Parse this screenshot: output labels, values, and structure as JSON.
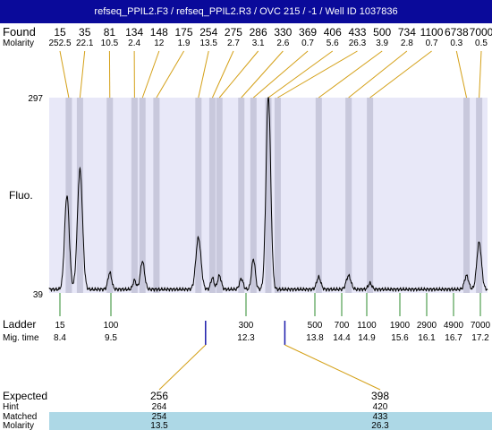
{
  "header": {
    "title": "refseq_PPIL2.F3 / refseq_PPIL2.R3 / OVC 215 / -1 / Well ID 1037836"
  },
  "labels": {
    "found": "Found",
    "molarity": "Molarity",
    "fluo": "Fluo.",
    "ladder": "Ladder",
    "mig_time": "Mig. time",
    "expected": "Expected",
    "hint": "Hint",
    "matched": "Matched",
    "molarity_row": "Molarity"
  },
  "colors": {
    "title_bg": "#0a0a9a",
    "plot_bg": "#e8e8f8",
    "band": "#c8c8dc",
    "found_line": "#d4a017",
    "ladder_line": "#2e8b2e",
    "expected_line": "#d4a017",
    "expected_marker": "#1a1aaa",
    "highlight_row": "#add8e6"
  },
  "chart_data": {
    "type": "line",
    "y_axis": {
      "top_label": "297",
      "bottom_label": "39",
      "ymin": 39,
      "ymax": 297
    },
    "time_range": [
      8.0,
      17.4
    ],
    "found_peaks": [
      {
        "size": "15",
        "molarity": "252.5",
        "time": 8.42
      },
      {
        "size": "35",
        "molarity": "22.1",
        "time": 8.66
      },
      {
        "size": "81",
        "molarity": "10.5",
        "time": 9.3
      },
      {
        "size": "134",
        "molarity": "2.4",
        "time": 9.83
      },
      {
        "size": "148",
        "molarity": "12",
        "time": 10.0
      },
      {
        "size": "175",
        "molarity": "1.9",
        "time": 10.3
      },
      {
        "size": "254",
        "molarity": "13.5",
        "time": 11.2
      },
      {
        "size": "275",
        "molarity": "2.7",
        "time": 11.5
      },
      {
        "size": "286",
        "molarity": "3.1",
        "time": 11.65
      },
      {
        "size": "330",
        "molarity": "2.6",
        "time": 12.12
      },
      {
        "size": "369",
        "molarity": "0.7",
        "time": 12.38
      },
      {
        "size": "406",
        "molarity": "5.6",
        "time": 12.7
      },
      {
        "size": "433",
        "molarity": "26.3",
        "time": 12.9
      },
      {
        "size": "500",
        "molarity": "3.9",
        "time": 13.78
      },
      {
        "size": "734",
        "molarity": "2.8",
        "time": 14.42
      },
      {
        "size": "1100",
        "molarity": "0.7",
        "time": 14.88
      },
      {
        "size": "6738",
        "molarity": "0.3",
        "time": 16.95
      },
      {
        "size": "7000",
        "molarity": "0.5",
        "time": 17.22
      }
    ],
    "ladder": [
      {
        "size": "15",
        "time": "8.4",
        "t": 8.4
      },
      {
        "size": "100",
        "time": "9.5",
        "t": 9.5
      },
      {
        "size": "300",
        "time": "12.3",
        "t": 12.3
      },
      {
        "size": "500",
        "time": "13.8",
        "t": 13.8
      },
      {
        "size": "700",
        "time": "14.4",
        "t": 14.4
      },
      {
        "size": "1100",
        "time": "14.9",
        "t": 14.9
      },
      {
        "size": "1900",
        "time": "15.6",
        "t": 15.6
      },
      {
        "size": "2900",
        "time": "16.1",
        "t": 16.1
      },
      {
        "size": "4900",
        "time": "16.7",
        "t": 16.7
      },
      {
        "size": "7000",
        "time": "17.2",
        "t": 17.2
      }
    ],
    "expected": [
      {
        "expected": "256",
        "hint": "264",
        "matched": "254",
        "molarity": "13.5",
        "t": 11.2
      },
      {
        "expected": "398",
        "hint": "420",
        "matched": "433",
        "molarity": "26.3",
        "t": 12.9
      }
    ],
    "trace_peaks": [
      {
        "t": 8.38,
        "h": 124,
        "w": 0.05
      },
      {
        "t": 8.66,
        "h": 158,
        "w": 0.055
      },
      {
        "t": 9.3,
        "h": 22,
        "w": 0.04
      },
      {
        "t": 9.83,
        "h": 12,
        "w": 0.035
      },
      {
        "t": 10.0,
        "h": 37,
        "w": 0.045
      },
      {
        "t": 11.2,
        "h": 68,
        "w": 0.055
      },
      {
        "t": 11.5,
        "h": 15,
        "w": 0.035
      },
      {
        "t": 11.65,
        "h": 18,
        "w": 0.04
      },
      {
        "t": 12.12,
        "h": 14,
        "w": 0.04
      },
      {
        "t": 12.38,
        "h": 40,
        "w": 0.04
      },
      {
        "t": 12.7,
        "h": 255,
        "w": 0.05
      },
      {
        "t": 13.78,
        "h": 16,
        "w": 0.045
      },
      {
        "t": 14.42,
        "h": 18,
        "w": 0.05
      },
      {
        "t": 14.88,
        "h": 8,
        "w": 0.04
      },
      {
        "t": 16.95,
        "h": 18,
        "w": 0.045
      },
      {
        "t": 17.22,
        "h": 62,
        "w": 0.05
      }
    ]
  }
}
